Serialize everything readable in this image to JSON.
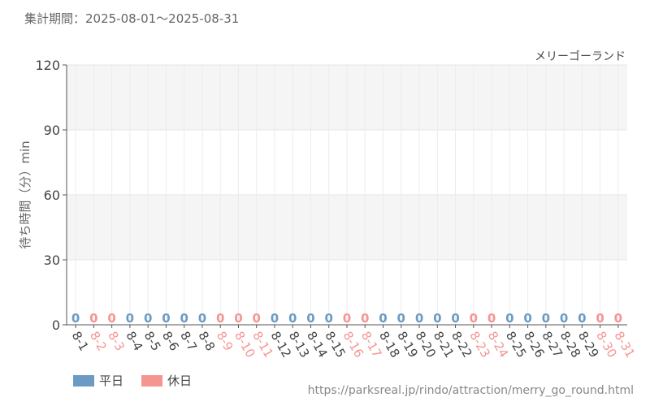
{
  "header": {
    "period": "集計期間：2025-08-01～2025-08-31"
  },
  "source": "https://parksreal.jp/rindo/attraction/merry_go_round.html",
  "colors": {
    "weekday": "#6b9bc4",
    "holiday": "#f59592",
    "grid_band": "#f5f5f5",
    "axis": "#555555"
  },
  "chart_data": {
    "type": "bar",
    "title": "メリーゴーランド",
    "ylabel": "待ち時間（分）min",
    "xlabel": "",
    "ylim": [
      0,
      120
    ],
    "yticks": [
      0,
      30,
      60,
      90,
      120
    ],
    "legend": [
      {
        "name": "平日",
        "key": "weekday"
      },
      {
        "name": "休日",
        "key": "holiday"
      }
    ],
    "legend_position": "bottom-left",
    "grid": true,
    "categories": [
      "8-1",
      "8-2",
      "8-3",
      "8-4",
      "8-5",
      "8-6",
      "8-7",
      "8-8",
      "8-9",
      "8-10",
      "8-11",
      "8-12",
      "8-13",
      "8-14",
      "8-15",
      "8-16",
      "8-17",
      "8-18",
      "8-19",
      "8-20",
      "8-21",
      "8-22",
      "8-23",
      "8-24",
      "8-25",
      "8-26",
      "8-27",
      "8-28",
      "8-29",
      "8-30",
      "8-31"
    ],
    "day_type": [
      "weekday",
      "holiday",
      "holiday",
      "weekday",
      "weekday",
      "weekday",
      "weekday",
      "weekday",
      "holiday",
      "holiday",
      "holiday",
      "weekday",
      "weekday",
      "weekday",
      "weekday",
      "holiday",
      "holiday",
      "weekday",
      "weekday",
      "weekday",
      "weekday",
      "weekday",
      "holiday",
      "holiday",
      "weekday",
      "weekday",
      "weekday",
      "weekday",
      "weekday",
      "holiday",
      "holiday"
    ],
    "values": [
      0,
      0,
      0,
      0,
      0,
      0,
      0,
      0,
      0,
      0,
      0,
      0,
      0,
      0,
      0,
      0,
      0,
      0,
      0,
      0,
      0,
      0,
      0,
      0,
      0,
      0,
      0,
      0,
      0,
      0,
      0
    ]
  }
}
